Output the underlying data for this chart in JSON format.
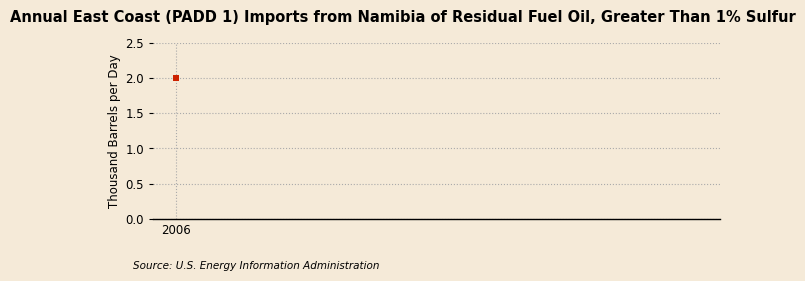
{
  "title": "Annual East Coast (PADD 1) Imports from Namibia of Residual Fuel Oil, Greater Than 1% Sulfur",
  "ylabel": "Thousand Barrels per Day",
  "source": "Source: U.S. Energy Information Administration",
  "x_data": [
    2006
  ],
  "y_data": [
    2.0
  ],
  "xlim": [
    2005.4,
    2020
  ],
  "ylim": [
    0.0,
    2.5
  ],
  "yticks": [
    0.0,
    0.5,
    1.0,
    1.5,
    2.0,
    2.5
  ],
  "xticks": [
    2006
  ],
  "point_color": "#cc2200",
  "background_color": "#f5ead8",
  "grid_color": "#aaaaaa",
  "title_fontsize": 10.5,
  "axis_label_fontsize": 8.5,
  "tick_fontsize": 8.5,
  "source_fontsize": 7.5
}
